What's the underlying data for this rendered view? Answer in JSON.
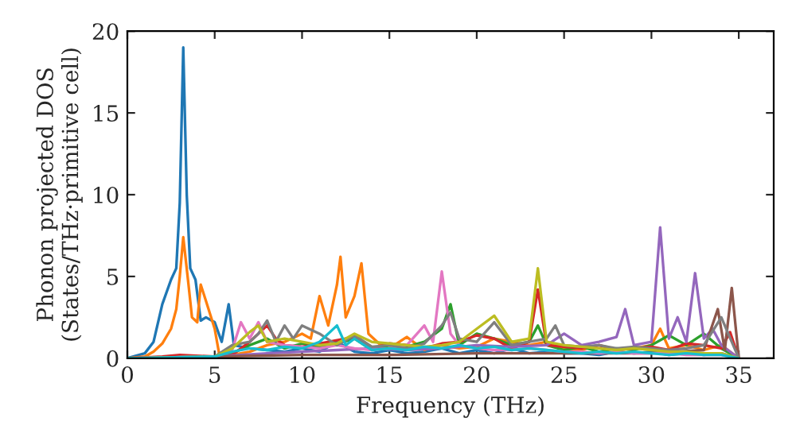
{
  "chart_data": {
    "type": "line",
    "xlabel": "Frequency (THz)",
    "ylabel": "Phonon projected DOS\n(States/THz·primitive cell)",
    "xlim": [
      0,
      37
    ],
    "ylim": [
      0,
      20
    ],
    "xticks": [
      0,
      5,
      10,
      15,
      20,
      25,
      30,
      35
    ],
    "yticks": [
      0,
      5,
      10,
      15,
      20
    ],
    "grid": false,
    "legend": false,
    "marker": "none",
    "line_style": "solid",
    "series": [
      {
        "color": "#1f77b4",
        "x": [
          0,
          1,
          1.5,
          2,
          2.5,
          2.8,
          3.0,
          3.2,
          3.4,
          3.6,
          3.9,
          4.2,
          4.5,
          5,
          5.4,
          5.8,
          6.1,
          7,
          8,
          9,
          10,
          11,
          12,
          13,
          14,
          15,
          16,
          17,
          18,
          19,
          20,
          21,
          22,
          23,
          24,
          25,
          26,
          27,
          28,
          29,
          30,
          31,
          32,
          33,
          34,
          35
        ],
        "values": [
          0,
          0.3,
          1,
          3.3,
          4.8,
          5.5,
          9.5,
          19,
          10,
          5.5,
          4.8,
          2.3,
          2.5,
          2.2,
          1,
          3.3,
          0.8,
          0.6,
          0.5,
          0.4,
          0.6,
          0.4,
          1.0,
          0.4,
          0.3,
          0.5,
          0.3,
          0.4,
          0.6,
          0.3,
          0.5,
          0.3,
          0.6,
          0.3,
          0.4,
          0.3,
          0.3,
          0.2,
          0.4,
          0.3,
          0.4,
          0.2,
          0.3,
          0.2,
          0.3,
          0
        ]
      },
      {
        "color": "#ff7f0e",
        "x": [
          0,
          1,
          1.5,
          2,
          2.5,
          2.8,
          3.0,
          3.2,
          3.5,
          3.7,
          4,
          4.2,
          4.5,
          5,
          5.3,
          6,
          7,
          8,
          9,
          10,
          10.5,
          11,
          11.5,
          12,
          12.2,
          12.5,
          13,
          13.4,
          13.8,
          14.5,
          15,
          16,
          17,
          18,
          19,
          20,
          21,
          22,
          23,
          24,
          25,
          26,
          27,
          28,
          29,
          30,
          30.5,
          31,
          32,
          33,
          34,
          35
        ],
        "values": [
          0,
          0.1,
          0.4,
          0.9,
          1.8,
          3,
          5,
          7.4,
          4.5,
          2.5,
          2.2,
          4.5,
          3.5,
          1.8,
          0,
          0.2,
          0.4,
          0.8,
          1.0,
          1.5,
          1.2,
          3.8,
          2.0,
          4.5,
          6.2,
          2.5,
          3.8,
          5.8,
          1.5,
          0.8,
          0.6,
          1.3,
          0.5,
          0.8,
          0.6,
          0.7,
          1.2,
          1.0,
          0.8,
          1.0,
          0.6,
          0.5,
          0.8,
          0.5,
          0.6,
          0.8,
          1.8,
          0.6,
          0.8,
          0.5,
          0.8,
          0
        ]
      },
      {
        "color": "#2ca02c",
        "x": [
          0,
          5,
          6,
          7,
          8,
          9,
          10,
          11,
          12,
          13,
          14,
          15,
          16,
          17,
          18,
          18.5,
          19,
          20,
          21,
          22,
          23,
          23.5,
          24,
          25,
          26,
          27,
          28,
          29,
          30,
          31,
          32,
          33,
          34,
          35
        ],
        "values": [
          0,
          0.1,
          0.3,
          0.8,
          1.2,
          0.6,
          0.9,
          0.7,
          0.9,
          1.2,
          0.5,
          0.8,
          0.7,
          1.0,
          1.8,
          3.3,
          0.8,
          1.5,
          1.2,
          0.8,
          1.0,
          2.0,
          0.8,
          0.5,
          0.7,
          0.4,
          0.6,
          0.5,
          0.8,
          1.4,
          0.8,
          1.5,
          0.6,
          0
        ]
      },
      {
        "color": "#d62728",
        "x": [
          0,
          2,
          3,
          5,
          6,
          7,
          8,
          8.5,
          9,
          10,
          11,
          12,
          13,
          14,
          15,
          16,
          17,
          18,
          19,
          20,
          21,
          22,
          23,
          23.5,
          24,
          25,
          26,
          27,
          28,
          29,
          30,
          31,
          32,
          33,
          34,
          34.5,
          35
        ],
        "values": [
          0,
          0.1,
          0.2,
          0.1,
          0.2,
          1.0,
          2.0,
          1.2,
          0.8,
          0.7,
          0.9,
          1.1,
          1.3,
          0.6,
          0.9,
          0.8,
          0.6,
          0.9,
          1.0,
          1.4,
          1.2,
          0.6,
          1.0,
          4.2,
          0.8,
          0.7,
          0.6,
          0.8,
          0.5,
          0.6,
          0.7,
          0.5,
          0.9,
          0.8,
          0.6,
          1.6,
          0
        ]
      },
      {
        "color": "#9467bd",
        "x": [
          0,
          5,
          8,
          10,
          12,
          14,
          16,
          18,
          20,
          22,
          24,
          25,
          26,
          27,
          28,
          28.5,
          29,
          30,
          30.5,
          31,
          31.5,
          32,
          32.5,
          33,
          33.5,
          34,
          35
        ],
        "values": [
          0,
          0.1,
          0.3,
          0.4,
          0.5,
          0.6,
          0.5,
          0.6,
          0.8,
          0.7,
          0.8,
          1.5,
          0.8,
          1.0,
          1.3,
          3.0,
          0.8,
          1.0,
          8.0,
          1.2,
          2.5,
          1.0,
          5.2,
          1.2,
          1.8,
          0.8,
          0
        ]
      },
      {
        "color": "#8c564b",
        "x": [
          0,
          5,
          10,
          15,
          20,
          25,
          30,
          33,
          33.8,
          34.2,
          34.6,
          35
        ],
        "values": [
          0,
          0.1,
          0.2,
          0.2,
          0.3,
          0.3,
          0.3,
          0.5,
          3.0,
          0.5,
          4.3,
          0
        ]
      },
      {
        "color": "#e377c2",
        "x": [
          0,
          5,
          6,
          6.5,
          7,
          7.5,
          8,
          9,
          10,
          11,
          12,
          13,
          14,
          15,
          16,
          17,
          17.5,
          18,
          18.5,
          19,
          20,
          21,
          22,
          23,
          24,
          25,
          26,
          27,
          28,
          29,
          30,
          31,
          32,
          33,
          34,
          35
        ],
        "values": [
          0,
          0.1,
          0.5,
          2.2,
          1.2,
          2.2,
          1.0,
          0.8,
          0.7,
          0.6,
          0.8,
          0.6,
          0.5,
          0.6,
          0.8,
          2.0,
          1.0,
          5.3,
          1.5,
          0.8,
          0.6,
          0.5,
          0.5,
          0.6,
          0.5,
          0.4,
          0.4,
          0.3,
          0.4,
          0.3,
          0.3,
          0.3,
          0.2,
          0.2,
          0.2,
          0
        ]
      },
      {
        "color": "#7f7f7f",
        "x": [
          0,
          5,
          6,
          7,
          7.5,
          8,
          8.5,
          9,
          9.5,
          10,
          11,
          12,
          13,
          14,
          15,
          16,
          17,
          18,
          18.5,
          19,
          20,
          21,
          22,
          23,
          24,
          24.5,
          25,
          26,
          27,
          28,
          29,
          30,
          31,
          32,
          33,
          34,
          35
        ],
        "values": [
          0,
          0.1,
          0.8,
          1.0,
          1.5,
          2.3,
          1.0,
          2.0,
          1.2,
          2.0,
          1.5,
          0.8,
          1.4,
          0.7,
          0.8,
          0.6,
          0.9,
          2.0,
          2.8,
          1.2,
          1.0,
          2.2,
          0.8,
          1.0,
          1.2,
          2.0,
          0.8,
          0.7,
          0.8,
          0.6,
          0.7,
          0.6,
          0.5,
          0.6,
          0.8,
          2.5,
          0
        ]
      },
      {
        "color": "#bcbd22",
        "x": [
          0,
          5,
          6,
          7,
          7.5,
          8,
          9,
          10,
          11,
          12,
          13,
          14,
          15,
          16,
          17,
          18,
          19,
          20,
          21,
          22,
          23,
          23.5,
          24,
          25,
          26,
          27,
          28,
          29,
          30,
          31,
          32,
          33,
          34,
          35
        ],
        "values": [
          0,
          0.1,
          0.6,
          1.6,
          2.0,
          1.0,
          1.2,
          1.0,
          0.8,
          0.9,
          1.5,
          1.0,
          0.9,
          0.8,
          0.7,
          0.8,
          1.0,
          1.8,
          2.6,
          1.0,
          1.2,
          5.5,
          1.0,
          0.8,
          0.7,
          0.6,
          0.5,
          0.6,
          0.5,
          0.4,
          0.4,
          0.3,
          0.3,
          0
        ]
      },
      {
        "color": "#17becf",
        "x": [
          0,
          5,
          6,
          7,
          8,
          9,
          10,
          11,
          12,
          12.5,
          13,
          14,
          15,
          16,
          17,
          18,
          19,
          20,
          21,
          22,
          23,
          24,
          25,
          26,
          27,
          28,
          29,
          30,
          31,
          32,
          33,
          34,
          35
        ],
        "values": [
          0,
          0.1,
          0.4,
          0.6,
          0.5,
          0.7,
          0.6,
          1.0,
          2.0,
          0.8,
          1.2,
          0.5,
          0.6,
          0.5,
          0.7,
          0.6,
          0.8,
          0.6,
          0.7,
          0.5,
          0.6,
          0.5,
          0.4,
          0.3,
          0.4,
          0.3,
          0.4,
          0.3,
          0.2,
          0.3,
          0.2,
          0.2,
          0
        ]
      }
    ]
  }
}
